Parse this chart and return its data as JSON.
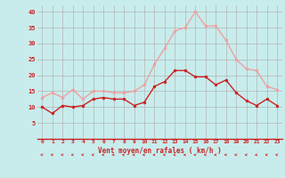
{
  "hours": [
    0,
    1,
    2,
    3,
    4,
    5,
    6,
    7,
    8,
    9,
    10,
    11,
    12,
    13,
    14,
    15,
    16,
    17,
    18,
    19,
    20,
    21,
    22,
    23
  ],
  "vent_moyen": [
    10,
    8,
    10.5,
    10,
    10.5,
    12.5,
    13,
    12.5,
    12.5,
    10.5,
    11.5,
    16.5,
    18,
    21.5,
    21.5,
    19.5,
    19.5,
    17,
    18.5,
    14.5,
    12,
    10.5,
    12.5,
    10.5
  ],
  "rafales": [
    13,
    14.5,
    13,
    15.5,
    12.5,
    15,
    15,
    14.5,
    14.5,
    15,
    17,
    23.5,
    28.5,
    34,
    35,
    40,
    35.5,
    35.5,
    31,
    25,
    22,
    21.5,
    16.5,
    15.5
  ],
  "color_moyen": "#cc2222",
  "color_rafales": "#f0a0a0",
  "bg_color": "#c8ecec",
  "grid_color": "#b0b0b0",
  "xlabel": "Vent moyen/en rafales ( km/h )",
  "ylim": [
    0,
    42
  ],
  "yticks": [
    5,
    10,
    15,
    20,
    25,
    30,
    35,
    40
  ],
  "xticks": [
    0,
    1,
    2,
    3,
    4,
    5,
    6,
    7,
    8,
    9,
    10,
    11,
    12,
    13,
    14,
    15,
    16,
    17,
    18,
    19,
    20,
    21,
    22,
    23
  ],
  "xlim": [
    -0.5,
    23.5
  ]
}
